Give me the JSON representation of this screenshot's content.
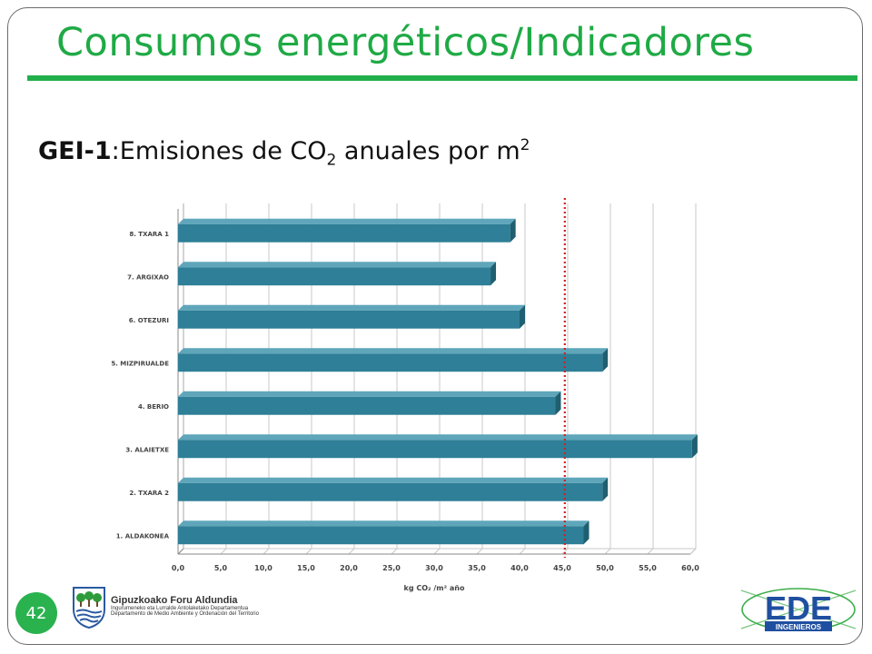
{
  "slide": {
    "title": "Consumos energéticos/Indicadores",
    "page_number": "42"
  },
  "subtitle": {
    "code": "GEI-1",
    "text": ":Emisiones de CO",
    "sub": "2",
    "text2": " anuales por m",
    "sup": "2"
  },
  "colors": {
    "title_green": "#1faa45",
    "bar_fill": "#2e7f97",
    "bar_side": "#1f5f70",
    "reference_line": "#d42020",
    "badge_green": "#2ab24f"
  },
  "chart_data": {
    "type": "bar",
    "orientation": "horizontal",
    "categories": [
      "1. ALDAKONEA",
      "2. TXARA 2",
      "3. ALAIETXE",
      "4. BERIO",
      "5. MIZPIRUALDE",
      "6. OTEZURI",
      "7. ARGIXAO",
      "8. TXARA 1"
    ],
    "values": [
      47.5,
      49.7,
      60.2,
      44.2,
      49.7,
      40.0,
      36.6,
      38.9
    ],
    "xlabel": "kg CO₂ /m² año",
    "ylabel": "",
    "xlim": [
      0,
      60
    ],
    "x_ticks": [
      "0,0",
      "5,0",
      "10,0",
      "15,0",
      "20,0",
      "25,0",
      "30,0",
      "35,0",
      "40,0",
      "45,0",
      "50,0",
      "55,0",
      "60,0"
    ],
    "reference_line": {
      "value": 45.3,
      "style": "dotted",
      "color": "#d42020"
    },
    "grid": true,
    "style": "3d"
  },
  "footer": {
    "institution_name": "Gipuzkoako Foru Aldundia",
    "department_basque": "Ingurumeneko eta Lurralde Antolaketako Departamentua",
    "department_spanish": "Departamento de Medio Ambiente y Ordenación del Territorio",
    "ede_logo_text": "EDE",
    "ede_logo_subtext": "INGENIEROS"
  }
}
